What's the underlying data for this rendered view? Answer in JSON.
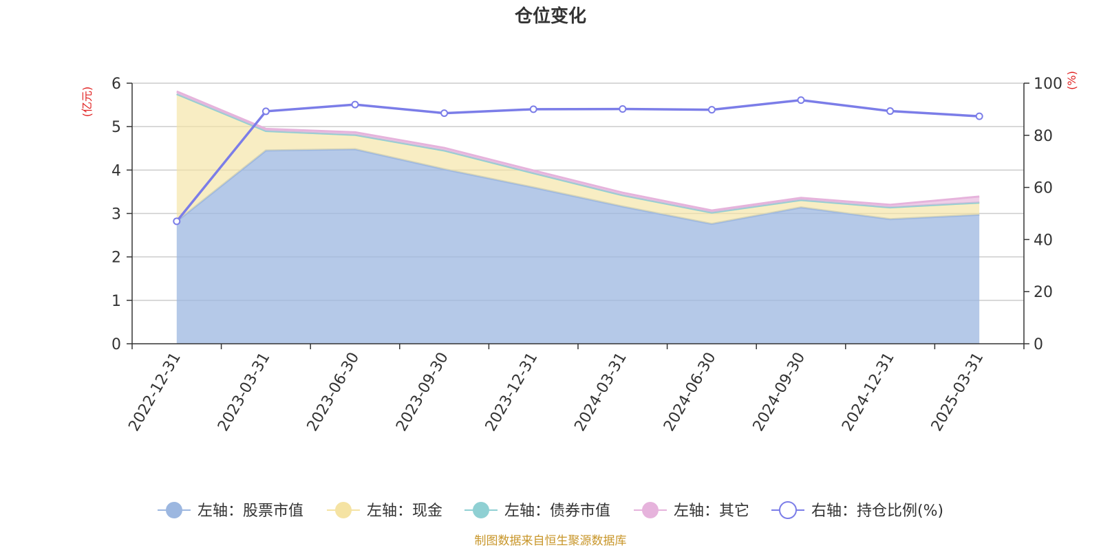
{
  "chart_data": {
    "type": "area",
    "title": "仓位变化",
    "left_axis": {
      "unit": "(亿元)",
      "ylim": [
        0,
        6
      ],
      "ticks": [
        0,
        1,
        2,
        3,
        4,
        5,
        6
      ]
    },
    "right_axis": {
      "unit": "(%)",
      "ylim": [
        0,
        100
      ],
      "ticks": [
        0,
        20,
        40,
        60,
        80,
        100
      ]
    },
    "categories": [
      "2022-12-31",
      "2023-03-31",
      "2023-06-30",
      "2023-09-30",
      "2023-12-31",
      "2024-03-31",
      "2024-06-30",
      "2024-09-30",
      "2024-12-31",
      "2025-03-31"
    ],
    "grid": true,
    "legend_position": "bottom",
    "series": [
      {
        "name": "左轴：股票市值",
        "axis": "left",
        "stack": true,
        "color": "#9cb7e0",
        "values": [
          2.82,
          4.45,
          4.48,
          4.02,
          3.6,
          3.16,
          2.76,
          3.14,
          2.87,
          2.97
        ]
      },
      {
        "name": "左轴：现金",
        "axis": "left",
        "stack": true,
        "color": "#f5e3a3",
        "values": [
          2.93,
          0.45,
          0.33,
          0.43,
          0.33,
          0.26,
          0.26,
          0.17,
          0.27,
          0.28
        ]
      },
      {
        "name": "左轴：债券市值",
        "axis": "left",
        "stack": true,
        "color": "#8fd0d3",
        "values": [
          0,
          0,
          0,
          0,
          0,
          0,
          0,
          0,
          0,
          0
        ]
      },
      {
        "name": "左轴：其它",
        "axis": "left",
        "stack": true,
        "color": "#e6b3dc",
        "values": [
          0.06,
          0.05,
          0.06,
          0.06,
          0.06,
          0.06,
          0.05,
          0.05,
          0.06,
          0.14
        ]
      },
      {
        "name": "右轴：持仓比例(%)",
        "axis": "right",
        "type": "line",
        "color": "#7b7de8",
        "values": [
          47.0,
          89.2,
          91.8,
          88.5,
          90.0,
          90.1,
          89.8,
          93.5,
          89.3,
          87.3
        ]
      }
    ]
  },
  "source_text": "制图数据来自恒生聚源数据库",
  "colors": {
    "axis_unit": "#e02020",
    "source": "#c8962a"
  }
}
